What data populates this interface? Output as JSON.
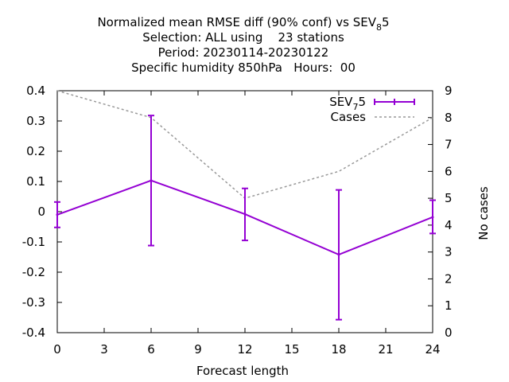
{
  "chart_data": {
    "type": "line",
    "title_lines": [
      {
        "text": "Normalized mean RMSE diff (90% conf) vs SEV",
        "sub": "8",
        "tail": "5"
      },
      {
        "text": "Selection: ALL using    23 stations",
        "sub": "",
        "tail": ""
      },
      {
        "text": "Period: 20230114-20230122",
        "sub": "",
        "tail": ""
      },
      {
        "text": "Specific humidity 850hPa   Hours:  00",
        "sub": "",
        "tail": ""
      }
    ],
    "xlabel": "Forecast length",
    "ylabel": "",
    "y2label": "No cases",
    "xlim": [
      0,
      24
    ],
    "ylim": [
      -0.4,
      0.4
    ],
    "y2lim": [
      0,
      9
    ],
    "x_ticks": [
      "0",
      "3",
      "6",
      "9",
      "12",
      "15",
      "18",
      "21",
      "24"
    ],
    "y_ticks": [
      "-0.4",
      "-0.3",
      "-0.2",
      "-0.1",
      "0",
      "0.1",
      "0.2",
      "0.3",
      "0.4"
    ],
    "y2_ticks": [
      "0",
      "1",
      "2",
      "3",
      "4",
      "5",
      "6",
      "7",
      "8",
      "9"
    ],
    "grid": false,
    "legend_position": "top-right",
    "series": [
      {
        "name": "SEV",
        "name_sub": "7",
        "name_tail": "5",
        "axis": "left",
        "style": "line-errorbars",
        "color": "#9400d3",
        "x": [
          0,
          6,
          12,
          18,
          24
        ],
        "y": [
          -0.01,
          0.103,
          -0.008,
          -0.142,
          -0.018
        ],
        "y_low": [
          -0.052,
          -0.112,
          -0.095,
          -0.357,
          -0.072
        ],
        "y_high": [
          0.032,
          0.318,
          0.077,
          0.072,
          0.038
        ]
      },
      {
        "name": "Cases",
        "axis": "right",
        "style": "dashed",
        "color": "#999999",
        "x": [
          0,
          6,
          12,
          18,
          24
        ],
        "y": [
          9,
          8,
          5,
          6,
          8
        ]
      }
    ]
  }
}
